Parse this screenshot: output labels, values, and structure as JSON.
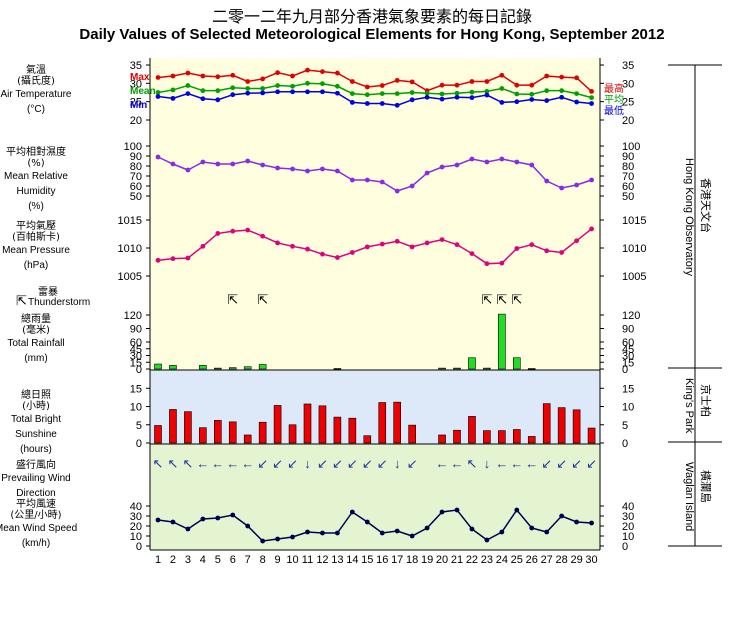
{
  "title_zh": "二零一二年九月部分香港氣象要素的每日記錄",
  "title_en": "Daily Values of Selected Meteorological Elements for Hong Kong, September 2012",
  "station_labels": {
    "hko_en": "Hong Kong Observatory",
    "hko_zh": "香港天文台",
    "kp_en": "King's Park",
    "kp_zh": "京士柏",
    "wi_en": "Waglan Island",
    "wi_zh": "橫瀾島"
  },
  "colors": {
    "max": "#e00000",
    "mean": "#00a000",
    "min": "#0000e0",
    "humidity": "#8a2be2",
    "pressure": "#e0007a",
    "rain": "#22dd22",
    "sun": "#ee0000",
    "wind": "#000050",
    "winddir": "#1a3a9a",
    "bg_hko": "#ffffe0",
    "bg_kp": "#dde8f8",
    "bg_wi": "#e4f4d0"
  },
  "chart_data": [
    {
      "type": "line",
      "title": "Air Temperature",
      "label_zh": [
        "氣溫",
        "(攝氏度)"
      ],
      "label_en": [
        "Air Temperature",
        "(°C)"
      ],
      "ylim": [
        20,
        35
      ],
      "ticks": [
        20,
        25,
        30,
        35
      ],
      "x": [
        1,
        2,
        3,
        4,
        5,
        6,
        7,
        8,
        9,
        10,
        11,
        12,
        13,
        14,
        15,
        16,
        17,
        18,
        19,
        20,
        21,
        22,
        23,
        24,
        25,
        26,
        27,
        28,
        29,
        30
      ],
      "series": [
        {
          "name": "Max",
          "name_zh": "最高",
          "color": "#e00000",
          "values": [
            31.6,
            32,
            32.8,
            32,
            31.8,
            32.2,
            30.5,
            31.2,
            32.9,
            32,
            33.6,
            33.2,
            32.8,
            30.5,
            29,
            29.4,
            30.8,
            30.4,
            28,
            29.5,
            29.5,
            30.5,
            30.5,
            32.2,
            29.5,
            29.5,
            32,
            31.7,
            31.5,
            27.8
          ]
        },
        {
          "name": "Mean",
          "name_zh": "平均",
          "color": "#00a000",
          "values": [
            27.5,
            28.2,
            29.4,
            28,
            28,
            28.8,
            28.6,
            28.6,
            29.4,
            29.2,
            30,
            29.9,
            29.2,
            27.2,
            26.9,
            27.2,
            27.2,
            27.5,
            27.3,
            27.1,
            27.3,
            27.6,
            27.8,
            28.6,
            27.1,
            27,
            28,
            28,
            27.2,
            26.1
          ]
        },
        {
          "name": "Min",
          "name_zh": "最低",
          "color": "#0000e0",
          "values": [
            26.4,
            25.9,
            27.2,
            25.8,
            25.5,
            26.9,
            27.3,
            27.4,
            27.7,
            27.7,
            27.7,
            27.7,
            27.3,
            24.8,
            24.5,
            24.5,
            24,
            25.5,
            26.2,
            25.7,
            26.2,
            26.1,
            26.8,
            24.8,
            25,
            25.6,
            25.3,
            26.2,
            24.9,
            24.5
          ]
        }
      ]
    },
    {
      "type": "line",
      "title": "Mean Relative Humidity",
      "label_zh": [
        "平均相對濕度",
        "(%)"
      ],
      "label_en": [
        "Mean Relative",
        "Humidity",
        "(%)"
      ],
      "ylim": [
        45,
        100
      ],
      "ticks": [
        50,
        60,
        70,
        80,
        90,
        100
      ],
      "series": [
        {
          "name": "Humidity",
          "values": [
            89,
            82,
            76,
            84,
            82,
            82,
            85,
            81,
            78,
            77,
            75,
            77,
            75,
            66,
            66,
            64,
            55,
            60,
            73,
            79,
            81,
            87,
            84,
            87,
            84,
            81,
            65,
            58,
            61,
            66
          ]
        }
      ]
    },
    {
      "type": "line",
      "title": "Mean Pressure",
      "label_zh": [
        "平均氣壓",
        "(百帕斯卡)"
      ],
      "label_en": [
        "Mean Pressure",
        "(hPa)"
      ],
      "ylim": [
        1005,
        1015
      ],
      "ticks": [
        1005,
        1010,
        1015
      ],
      "series": [
        {
          "name": "Pressure",
          "values": [
            1007.8,
            1008.1,
            1008.2,
            1010.3,
            1012.6,
            1013,
            1013.2,
            1012.1,
            1010.9,
            1010.3,
            1009.8,
            1008.9,
            1008.3,
            1009.2,
            1010.2,
            1010.7,
            1011.2,
            1010.2,
            1010.9,
            1011.5,
            1010.6,
            1009,
            1007.2,
            1007.3,
            1009.9,
            1010.6,
            1009.5,
            1009.2,
            1011.3,
            1013.4
          ]
        }
      ]
    },
    {
      "type": "bar",
      "title": "Total Rainfall",
      "thunder_label_zh": "雷暴",
      "thunder_label_en": "Thunderstorm",
      "thunderstorm_days": [
        6,
        8,
        23,
        24,
        25
      ],
      "label_zh": [
        "總雨量",
        "(毫米)"
      ],
      "label_en": [
        "Total Rainfall",
        "(mm)"
      ],
      "ylim": [
        0,
        120
      ],
      "ticks": [
        0,
        15,
        30,
        45,
        60,
        90,
        120
      ],
      "series": [
        {
          "name": "Rainfall",
          "values": [
            11,
            8,
            0,
            8,
            2,
            3,
            5,
            10,
            0,
            0,
            0,
            0,
            1,
            0,
            0,
            0,
            0,
            0,
            0,
            2,
            2,
            25,
            2,
            122,
            25,
            1,
            0,
            0,
            0,
            0
          ]
        }
      ]
    },
    {
      "type": "bar",
      "title": "Total Bright Sunshine",
      "label_zh": [
        "總日照",
        "(小時)"
      ],
      "label_en": [
        "Total Bright",
        "Sunshine",
        "(hours)"
      ],
      "ylim": [
        0,
        17
      ],
      "ticks": [
        0,
        5,
        10,
        15
      ],
      "series": [
        {
          "name": "Sunshine",
          "values": [
            4.8,
            9.2,
            8.6,
            4.2,
            6.2,
            5.8,
            2.2,
            5.7,
            10.3,
            5,
            10.7,
            10.2,
            7.1,
            6.8,
            2,
            11.1,
            11.2,
            4.9,
            0,
            2.2,
            3.5,
            7.3,
            3.4,
            3.4,
            3.7,
            1.8,
            10.8,
            9.7,
            9.1,
            4.1
          ]
        }
      ]
    },
    {
      "type": "table",
      "title": "Prevailing Wind Direction",
      "label_zh": [
        "盛行風向"
      ],
      "label_en": [
        "Prevailing Wind",
        "Direction"
      ],
      "values": [
        "NW",
        "NW",
        "NW",
        "W",
        "W",
        "W",
        "W",
        "SW",
        "SW",
        "SW",
        "S",
        "SW",
        "SW",
        "SW",
        "SW",
        "SW",
        "S",
        "SW",
        "",
        "W",
        "W",
        "NW",
        "S",
        "W",
        "W",
        "W",
        "SW",
        "SW",
        "SW",
        "SW"
      ]
    },
    {
      "type": "line",
      "title": "Mean Wind Speed",
      "label_zh": [
        "平均風速",
        "(公里/小時)"
      ],
      "label_en": [
        "Mean Wind Speed",
        "(km/h)"
      ],
      "ylim": [
        0,
        47
      ],
      "ticks": [
        0,
        10,
        20,
        30,
        40
      ],
      "series": [
        {
          "name": "Wind Speed",
          "values": [
            26,
            24,
            17,
            27,
            28,
            31,
            20,
            5,
            7,
            9,
            14,
            13,
            13,
            34,
            24,
            13,
            15,
            10,
            18,
            34,
            36,
            17,
            6,
            14,
            36,
            18,
            14,
            30,
            24,
            23
          ]
        }
      ]
    }
  ]
}
